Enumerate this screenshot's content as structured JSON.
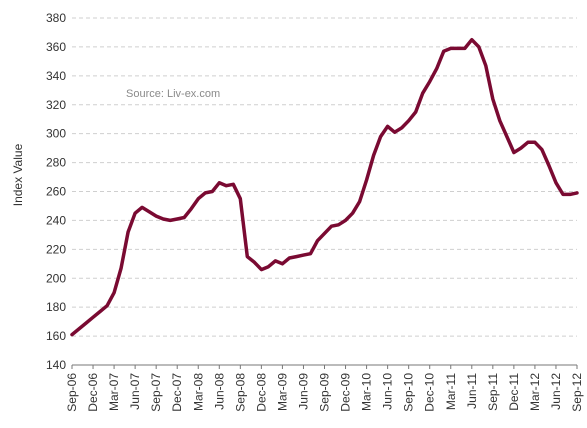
{
  "chart_data": {
    "type": "line",
    "title": "",
    "xlabel": "",
    "ylabel": "Index Value",
    "annotation": "Source: Liv-ex.com",
    "ylim": [
      140,
      380
    ],
    "yticks": [
      140,
      160,
      180,
      200,
      220,
      240,
      260,
      280,
      300,
      320,
      340,
      360,
      380
    ],
    "xlim": [
      "Sep-06",
      "Sep-12"
    ],
    "xticks": [
      "Sep-06",
      "Dec-06",
      "Mar-07",
      "Jun-07",
      "Sep-07",
      "Dec-07",
      "Mar-08",
      "Jun-08",
      "Sep-08",
      "Dec-08",
      "Mar-09",
      "Jun-09",
      "Sep-09",
      "Dec-09",
      "Mar-10",
      "Jun-10",
      "Sep-10",
      "Dec-10",
      "Mar-11",
      "Jun-11",
      "Sep-11",
      "Dec-11",
      "Mar-12",
      "Jun-12",
      "Sep-12"
    ],
    "grid": true,
    "color": "#7a0a32",
    "series": [
      {
        "x": [
          "Sep-06",
          "Oct-06",
          "Nov-06",
          "Dec-06",
          "Jan-07",
          "Feb-07",
          "Mar-07",
          "Apr-07",
          "May-07",
          "Jun-07",
          "Jul-07",
          "Aug-07",
          "Sep-07",
          "Oct-07",
          "Nov-07",
          "Dec-07",
          "Jan-08",
          "Feb-08",
          "Mar-08",
          "Apr-08",
          "May-08",
          "Jun-08",
          "Jul-08",
          "Aug-08",
          "Sep-08",
          "Oct-08",
          "Nov-08",
          "Dec-08",
          "Jan-09",
          "Feb-09",
          "Mar-09",
          "Apr-09",
          "May-09",
          "Jun-09",
          "Jul-09",
          "Aug-09",
          "Sep-09",
          "Oct-09",
          "Nov-09",
          "Dec-09",
          "Jan-10",
          "Feb-10",
          "Mar-10",
          "Apr-10",
          "May-10",
          "Jun-10",
          "Jul-10",
          "Aug-10",
          "Sep-10",
          "Oct-10",
          "Nov-10",
          "Dec-10",
          "Jan-11",
          "Feb-11",
          "Mar-11",
          "Apr-11",
          "May-11",
          "Jun-11",
          "Jul-11",
          "Aug-11",
          "Sep-11",
          "Oct-11",
          "Nov-11",
          "Dec-11",
          "Jan-12",
          "Feb-12",
          "Mar-12",
          "Apr-12",
          "May-12",
          "Jun-12",
          "Jul-12",
          "Aug-12",
          "Sep-12"
        ],
        "values": [
          161,
          165,
          169,
          173,
          177,
          181,
          190,
          207,
          232,
          245,
          249,
          246,
          243,
          241,
          240,
          241,
          242,
          248,
          255,
          259,
          260,
          266,
          264,
          265,
          255,
          215,
          211,
          206,
          208,
          212,
          210,
          214,
          215,
          216,
          217,
          226,
          231,
          236,
          237,
          240,
          245,
          253,
          268,
          285,
          298,
          305,
          301,
          304,
          309,
          315,
          328,
          336,
          345,
          357,
          359,
          359,
          359,
          365,
          360,
          347,
          324,
          309,
          298,
          287,
          290,
          294,
          294,
          289,
          278,
          266,
          258,
          258,
          259
        ]
      }
    ]
  }
}
